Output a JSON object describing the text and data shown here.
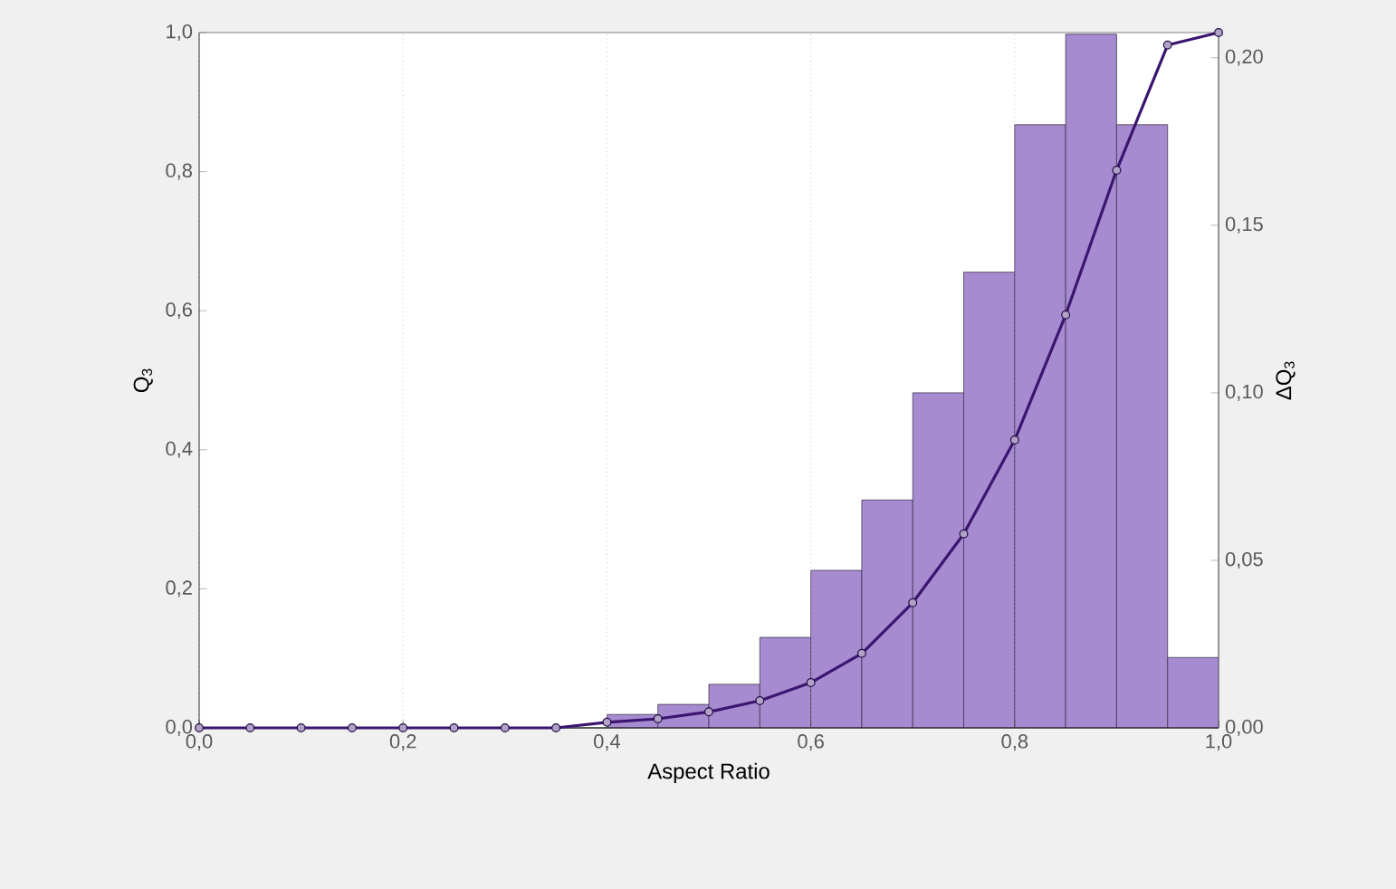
{
  "chart_data": {
    "type": "histogram",
    "xlabel": "Aspect Ratio",
    "ylabel": "Q$_{3}$",
    "y2label": "ΔQ$_{3}$",
    "bins": [
      0.4,
      0.45,
      0.5,
      0.55,
      0.6,
      0.65,
      0.7,
      0.75,
      0.8,
      0.85,
      0.9,
      0.95,
      1.0
    ],
    "series": [
      {
        "type": "histogram",
        "axis": "y2",
        "color": "#a68bd0",
        "values": [
          0.004,
          0.007,
          0.013,
          0.027,
          0.047,
          0.068,
          0.1,
          0.136,
          0.18,
          0.207,
          0.18,
          0.021
        ]
      },
      {
        "type": "line",
        "axis": "y",
        "color": "#3b1570",
        "marker": "circle",
        "x": [
          0,
          0.05,
          0.1,
          0.15,
          0.2,
          0.25,
          0.3,
          0.35,
          0.4,
          0.45,
          0.5,
          0.55,
          0.6,
          0.65,
          0.7,
          0.75,
          0.8,
          0.85,
          0.9,
          0.95,
          1.0
        ],
        "values": [
          0,
          0,
          0,
          0,
          0,
          0,
          0,
          0,
          0.008,
          0.013,
          0.023,
          0.039,
          0.065,
          0.107,
          0.18,
          0.279,
          0.414,
          0.594,
          0.802,
          0.982,
          1.0
        ]
      }
    ],
    "xlim": [
      0,
      1
    ],
    "ylim": [
      0,
      1
    ],
    "y2lim": [
      0,
      0.2075
    ],
    "xticks": [
      {
        "value": 0,
        "label": "0,0"
      },
      {
        "value": 0.2,
        "label": "0,2"
      },
      {
        "value": 0.4,
        "label": "0,4"
      },
      {
        "value": 0.6,
        "label": "0,6"
      },
      {
        "value": 0.8,
        "label": "0,8"
      },
      {
        "value": 1,
        "label": "1,0"
      }
    ],
    "yticks": [
      {
        "value": 0,
        "label": "0,0"
      },
      {
        "value": 0.2,
        "label": "0,2"
      },
      {
        "value": 0.4,
        "label": "0,4"
      },
      {
        "value": 0.6,
        "label": "0,6"
      },
      {
        "value": 0.8,
        "label": "0,8"
      },
      {
        "value": 1,
        "label": "1,0"
      }
    ],
    "y2ticks": [
      {
        "value": 0,
        "label": "0,00"
      },
      {
        "value": 0.05,
        "label": "0,05"
      },
      {
        "value": 0.1,
        "label": "0,10"
      },
      {
        "value": 0.15,
        "label": "0,15"
      },
      {
        "value": 0.2,
        "label": "0,20"
      }
    ],
    "grid": "x"
  }
}
